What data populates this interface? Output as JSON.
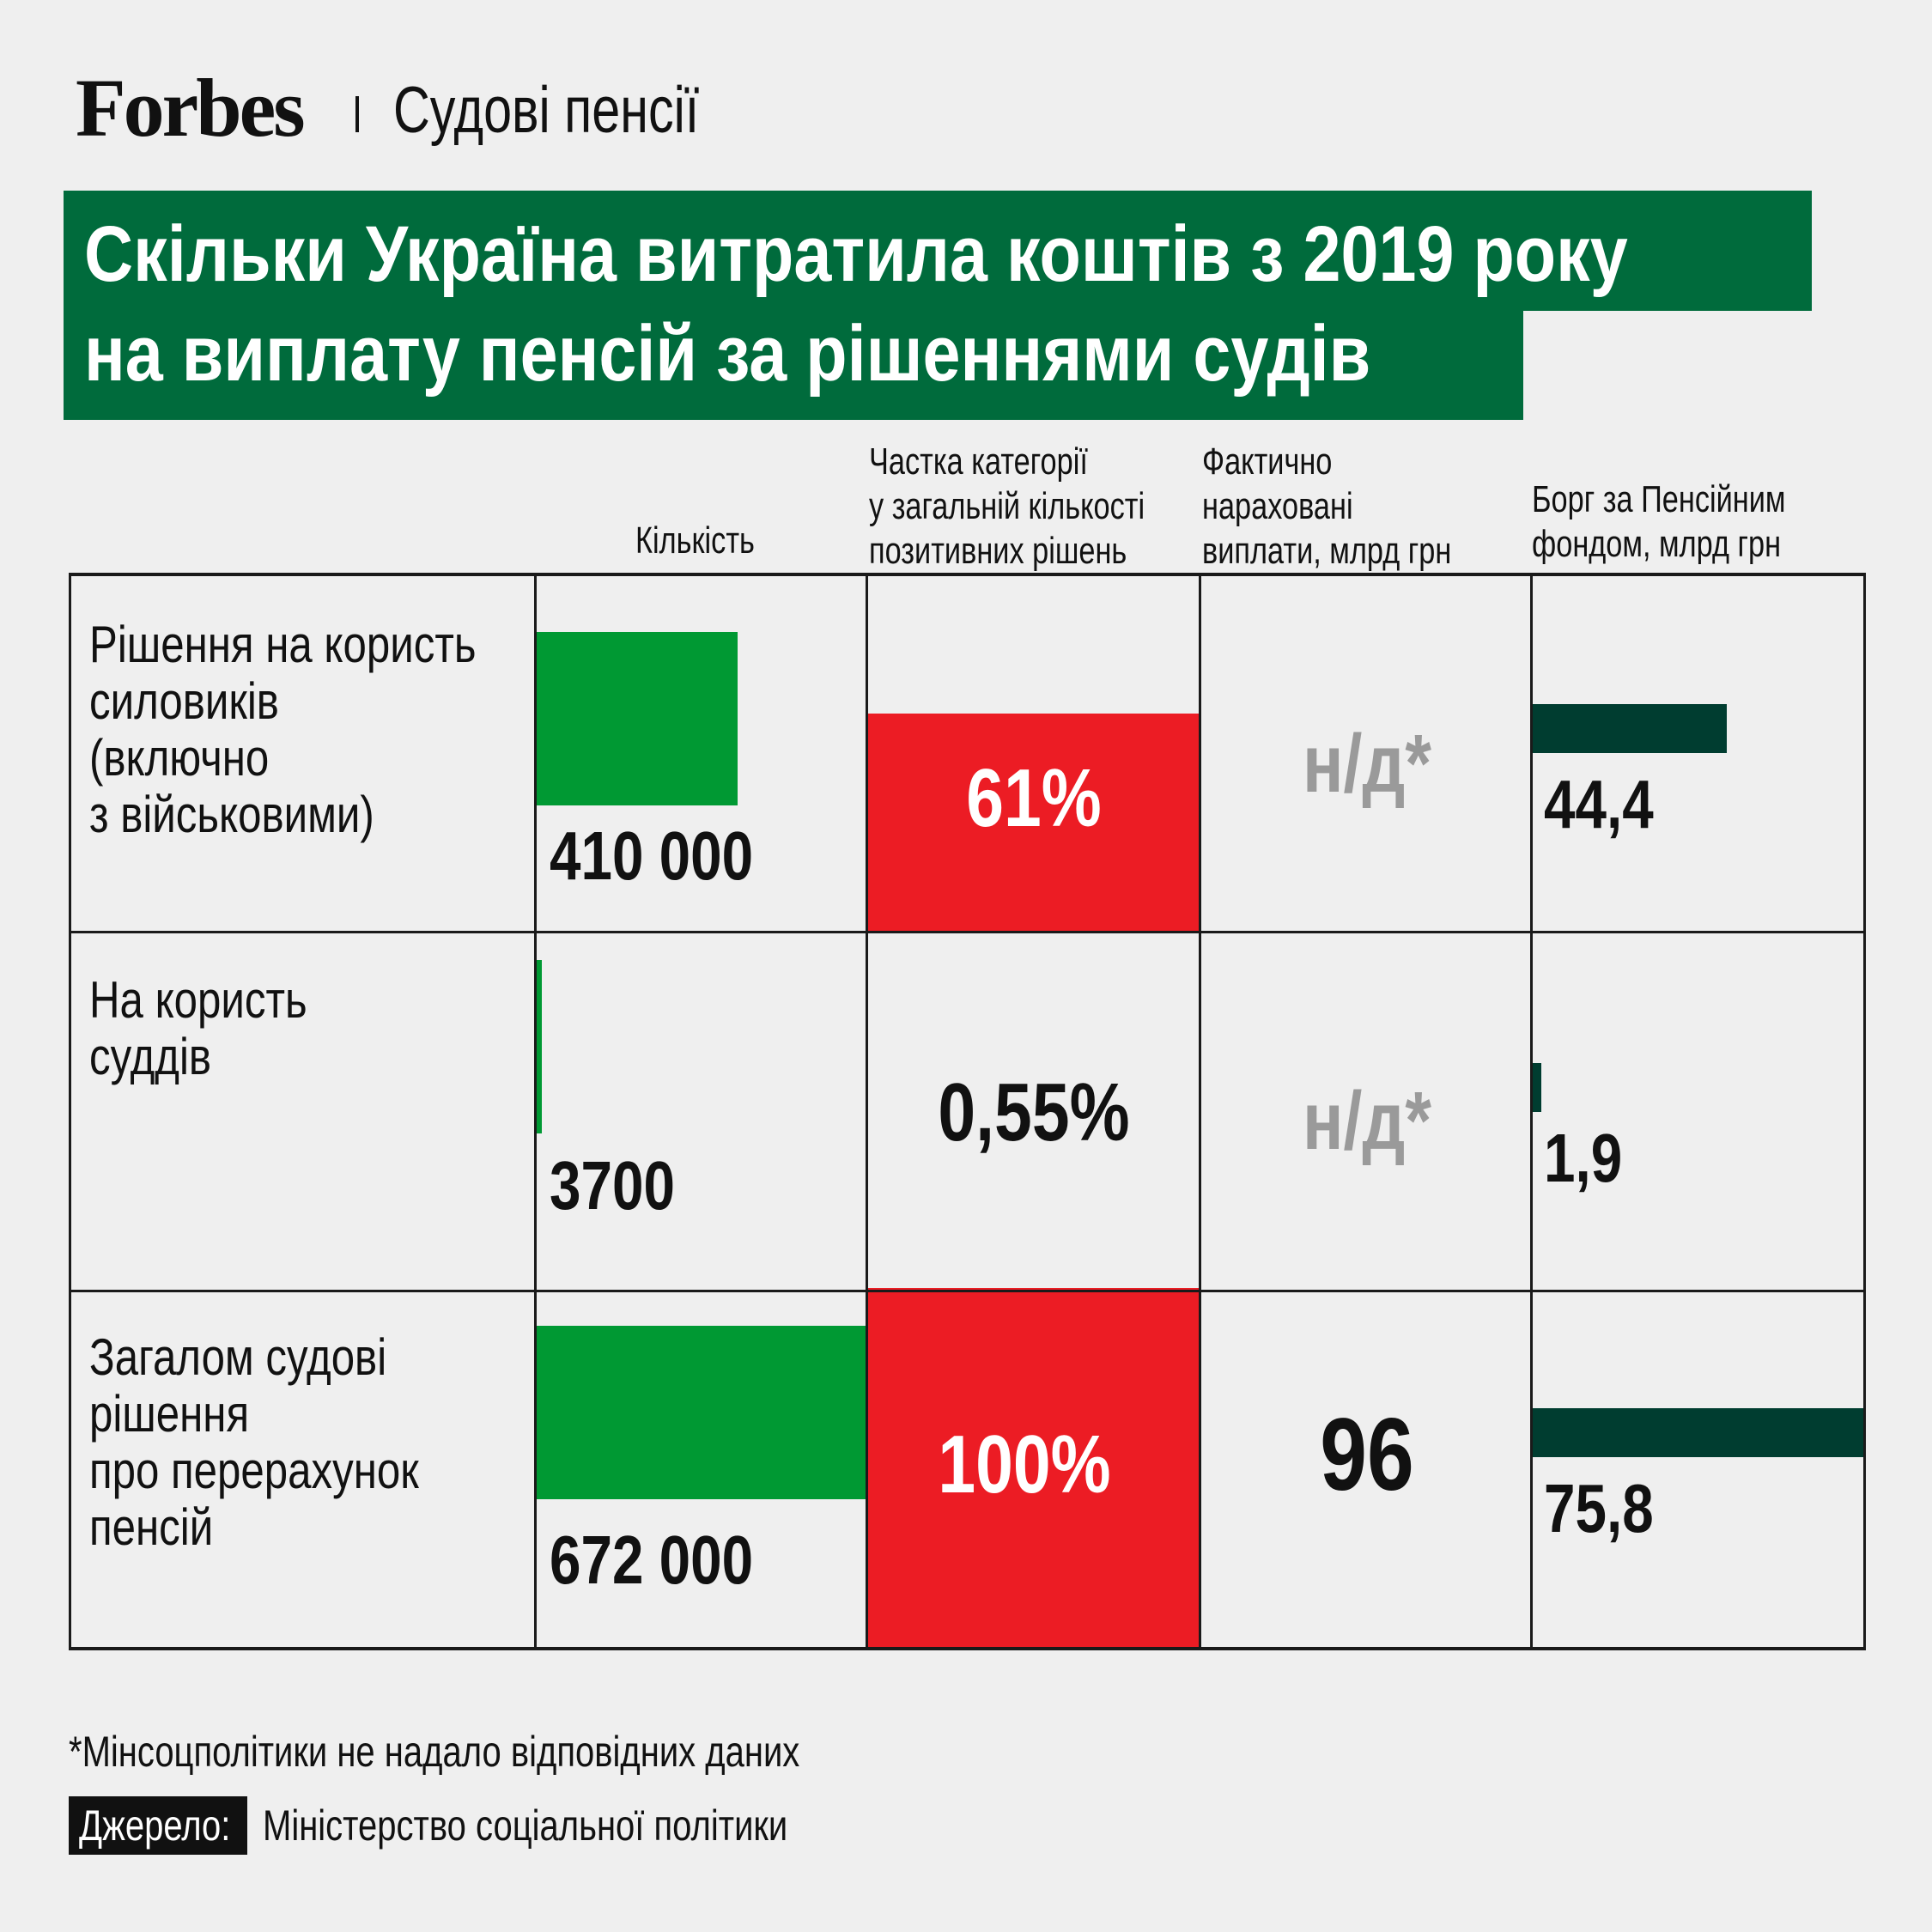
{
  "brand": {
    "logo": "Forbes",
    "section": "Судові пенсії"
  },
  "colors": {
    "title_bg": "#006b3c",
    "count_bar": "#009933",
    "share_bar": "#ec1c24",
    "debt_bar": "#003d30",
    "na_text": "#9a9a9a",
    "background": "#efefef"
  },
  "chart_data": {
    "type": "table",
    "title": "Скільки Україна витратила коштів з 2019 року на виплату пенсій за рішеннями судів",
    "title_lines": [
      "Скільки Україна витратила коштів з 2019 року",
      "на виплату пенсій за рішеннями судів"
    ],
    "columns": [
      {
        "key": "count",
        "lines": [
          "Кількість"
        ]
      },
      {
        "key": "share",
        "lines": [
          "Частка категорії",
          "у загальній кількості",
          "позитивних рішень"
        ]
      },
      {
        "key": "accrued",
        "lines": [
          "Фактично",
          "нараховані",
          "виплати, млрд грн"
        ]
      },
      {
        "key": "debt",
        "lines": [
          "Борг за Пенсійним",
          "фондом, млрд грн"
        ]
      }
    ],
    "rows": [
      {
        "label_lines": [
          "Рішення на користь",
          "силовиків",
          "(включно",
          "з військовими)"
        ],
        "count": 410000,
        "count_label": "410 000",
        "share": 61,
        "share_label": "61%",
        "accrued": null,
        "accrued_label": "н/д*",
        "debt": 44.4,
        "debt_label": "44,4"
      },
      {
        "label_lines": [
          "На користь",
          "суддів"
        ],
        "count": 3700,
        "count_label": "3700",
        "share": 0.55,
        "share_label": "0,55%",
        "accrued": null,
        "accrued_label": "н/д*",
        "debt": 1.9,
        "debt_label": "1,9"
      },
      {
        "label_lines": [
          "Загалом судові",
          "рішення",
          "про перерахунок",
          "пенсій"
        ],
        "count": 672000,
        "count_label": "672 000",
        "share": 100,
        "share_label": "100%",
        "accrued": 96,
        "accrued_label": "96",
        "debt": 75.8,
        "debt_label": "75,8"
      }
    ]
  },
  "footnote": "*Мінсоцполітики не надало відповідних даних",
  "source": {
    "label": "Джерело:",
    "text": "Міністерство соціальної політики"
  }
}
